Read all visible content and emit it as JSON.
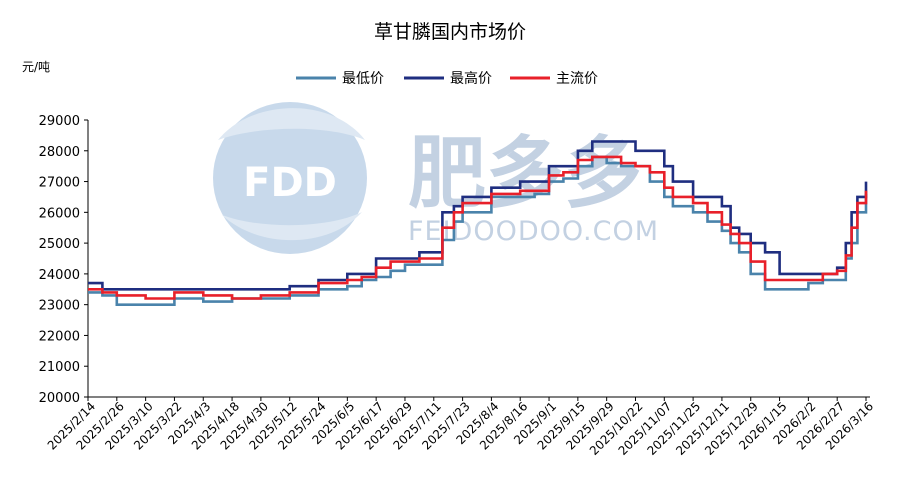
{
  "chart_data": {
    "type": "line",
    "title": "草甘膦国内市场价",
    "unit_label": "元/吨",
    "ylim": [
      20000,
      29000
    ],
    "y_ticks": [
      20000,
      21000,
      22000,
      23000,
      24000,
      25000,
      26000,
      27000,
      28000,
      29000
    ],
    "x_tick_labels": [
      "2025/2/14",
      "2025/2/26",
      "2025/3/10",
      "2025/3/22",
      "2025/4/3",
      "2025/4/18",
      "2025/4/30",
      "2025/5/12",
      "2025/5/24",
      "2025/6/5",
      "2025/6/17",
      "2025/6/29",
      "2025/7/11",
      "2025/7/23",
      "2025/8/4",
      "2025/8/16",
      "2025/9/1",
      "2025/9/15",
      "2025/9/29",
      "2025/10/22",
      "2025/11/07",
      "2025/11/25",
      "2025/12/11",
      "2025/12/29",
      "2026/1/15",
      "2026/2/2",
      "2026/2/27",
      "2026/3/16"
    ],
    "legend_position": "top-center",
    "grid": false,
    "series": [
      {
        "name": "最低价",
        "color": "#4a83ab",
        "x": [
          0,
          0.5,
          1,
          2,
          3,
          4,
          5,
          6,
          7,
          8,
          9,
          9.5,
          10,
          10.5,
          11,
          11.5,
          12,
          12.3,
          12.7,
          13,
          14,
          15,
          15.5,
          16,
          16.5,
          17,
          17.5,
          18,
          18.5,
          19,
          19.5,
          20,
          20.3,
          20.7,
          21,
          21.5,
          22,
          22.3,
          22.6,
          23,
          23.5,
          24,
          25,
          25.5,
          26,
          26.3,
          26.5,
          26.7,
          27
        ],
        "values": [
          23400,
          23300,
          23000,
          23000,
          23200,
          23100,
          23200,
          23200,
          23300,
          23500,
          23600,
          23800,
          23900,
          24100,
          24300,
          24300,
          24300,
          25100,
          25700,
          26000,
          26500,
          26500,
          26600,
          27000,
          27100,
          27500,
          27800,
          27600,
          27500,
          27500,
          27000,
          26500,
          26200,
          26200,
          26000,
          25700,
          25400,
          25000,
          24700,
          24000,
          23500,
          23500,
          23700,
          23800,
          23800,
          24500,
          25000,
          26000,
          26600
        ]
      },
      {
        "name": "最高价",
        "color": "#1f2e80",
        "x": [
          0,
          0.5,
          1,
          2,
          3,
          4,
          5,
          6,
          7,
          8,
          9,
          9.5,
          10,
          10.5,
          11,
          11.5,
          12,
          12.3,
          12.7,
          13,
          14,
          15,
          15.5,
          16,
          16.5,
          17,
          17.5,
          18,
          18.5,
          19,
          19.5,
          20,
          20.3,
          20.7,
          21,
          21.5,
          22,
          22.3,
          22.6,
          23,
          23.5,
          24,
          25,
          25.5,
          26,
          26.3,
          26.5,
          26.7,
          27
        ],
        "values": [
          23700,
          23500,
          23500,
          23500,
          23500,
          23500,
          23500,
          23500,
          23600,
          23800,
          24000,
          24000,
          24500,
          24500,
          24500,
          24700,
          24700,
          26000,
          26200,
          26500,
          26800,
          27000,
          27000,
          27500,
          27500,
          28000,
          28300,
          28300,
          28300,
          28000,
          28000,
          27500,
          27000,
          27000,
          26500,
          26500,
          26200,
          25500,
          25300,
          25000,
          24700,
          24000,
          24000,
          24000,
          24200,
          25000,
          26000,
          26500,
          27000
        ]
      },
      {
        "name": "主流价",
        "color": "#e8202a",
        "x": [
          0,
          0.5,
          1,
          2,
          3,
          4,
          5,
          6,
          7,
          8,
          9,
          9.5,
          10,
          10.5,
          11,
          11.5,
          12,
          12.3,
          12.7,
          13,
          14,
          15,
          15.5,
          16,
          16.5,
          17,
          17.5,
          18,
          18.5,
          19,
          19.5,
          20,
          20.3,
          20.7,
          21,
          21.5,
          22,
          22.3,
          22.6,
          23,
          23.5,
          24,
          25,
          25.5,
          26,
          26.3,
          26.5,
          26.7,
          27
        ],
        "values": [
          23500,
          23400,
          23300,
          23200,
          23400,
          23300,
          23200,
          23300,
          23400,
          23700,
          23800,
          23900,
          24200,
          24400,
          24400,
          24500,
          24500,
          25500,
          26000,
          26300,
          26600,
          26700,
          26700,
          27200,
          27300,
          27700,
          27800,
          27800,
          27600,
          27500,
          27300,
          26800,
          26500,
          26500,
          26300,
          26000,
          25600,
          25300,
          25000,
          24400,
          23800,
          23800,
          23800,
          24000,
          24100,
          24600,
          25500,
          26300,
          26700
        ]
      }
    ]
  },
  "watermark": {
    "logo_text": "FDD",
    "brand_text": "肥多多",
    "url_text": "FEIDOODOO.COM",
    "logo_color": "#a9c4e0"
  }
}
